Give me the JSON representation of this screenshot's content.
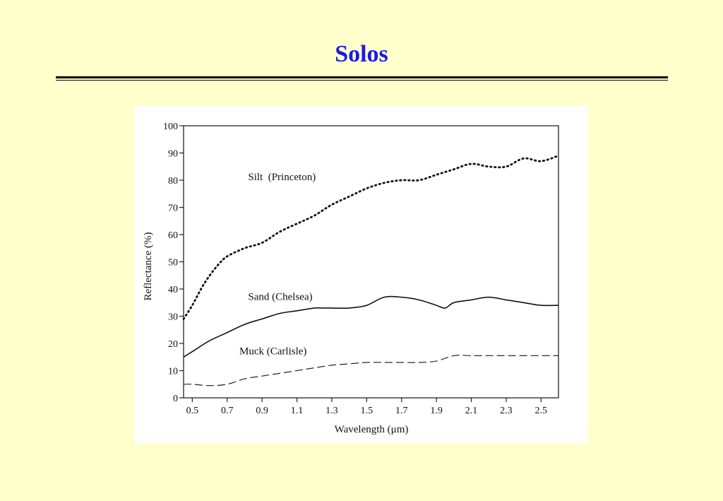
{
  "slide": {
    "title": "Solos",
    "title_color": "#1a1ae6",
    "background": "#ffffcc"
  },
  "chart_data": {
    "type": "line",
    "title": "",
    "xlabel": "Wavelength (μm)",
    "ylabel": "Reflectance (%)",
    "xlim": [
      0.45,
      2.6
    ],
    "ylim": [
      0,
      100
    ],
    "x_ticks": [
      0.5,
      0.7,
      0.9,
      1.1,
      1.3,
      1.5,
      1.7,
      1.9,
      2.1,
      2.3,
      2.5
    ],
    "x_tick_labels": [
      "0.5",
      "0.7",
      "0.9",
      "1.1",
      "1.3",
      "1.5",
      "1.7",
      "1.9",
      "2.1",
      "2.3",
      "2.5"
    ],
    "y_ticks": [
      0,
      10,
      20,
      30,
      40,
      50,
      60,
      70,
      80,
      90,
      100
    ],
    "y_tick_labels": [
      "0",
      "10",
      "20",
      "30",
      "40",
      "50",
      "60",
      "70",
      "80",
      "90",
      "100"
    ],
    "grid": false,
    "legend": "none",
    "series": [
      {
        "name": "Silt (Princeton)",
        "style": "dotted",
        "points": [
          [
            0.45,
            29
          ],
          [
            0.5,
            34
          ],
          [
            0.55,
            40
          ],
          [
            0.6,
            45
          ],
          [
            0.65,
            49
          ],
          [
            0.7,
            52
          ],
          [
            0.8,
            55
          ],
          [
            0.9,
            57
          ],
          [
            1.0,
            61
          ],
          [
            1.1,
            64
          ],
          [
            1.2,
            67
          ],
          [
            1.3,
            71
          ],
          [
            1.4,
            74
          ],
          [
            1.5,
            77
          ],
          [
            1.6,
            79
          ],
          [
            1.7,
            80
          ],
          [
            1.8,
            80
          ],
          [
            1.9,
            82
          ],
          [
            2.0,
            84
          ],
          [
            2.1,
            86
          ],
          [
            2.2,
            85
          ],
          [
            2.3,
            85
          ],
          [
            2.4,
            88
          ],
          [
            2.5,
            87
          ],
          [
            2.6,
            89
          ]
        ]
      },
      {
        "name": "Sand (Chelsea)",
        "style": "solid",
        "points": [
          [
            0.45,
            15
          ],
          [
            0.5,
            17
          ],
          [
            0.6,
            21
          ],
          [
            0.7,
            24
          ],
          [
            0.8,
            27
          ],
          [
            0.9,
            29
          ],
          [
            1.0,
            31
          ],
          [
            1.1,
            32
          ],
          [
            1.2,
            33
          ],
          [
            1.25,
            33
          ],
          [
            1.3,
            33
          ],
          [
            1.4,
            33
          ],
          [
            1.5,
            34
          ],
          [
            1.6,
            37
          ],
          [
            1.7,
            37
          ],
          [
            1.8,
            36
          ],
          [
            1.9,
            34
          ],
          [
            1.95,
            33
          ],
          [
            2.0,
            35
          ],
          [
            2.1,
            36
          ],
          [
            2.2,
            37
          ],
          [
            2.3,
            36
          ],
          [
            2.4,
            35
          ],
          [
            2.5,
            34
          ],
          [
            2.6,
            34
          ]
        ]
      },
      {
        "name": "Muck (Carlisle)",
        "style": "dashed",
        "points": [
          [
            0.45,
            5
          ],
          [
            0.5,
            5
          ],
          [
            0.6,
            4.5
          ],
          [
            0.7,
            5
          ],
          [
            0.8,
            7
          ],
          [
            0.9,
            8
          ],
          [
            1.0,
            9
          ],
          [
            1.1,
            10
          ],
          [
            1.2,
            11
          ],
          [
            1.3,
            12
          ],
          [
            1.4,
            12.5
          ],
          [
            1.5,
            13
          ],
          [
            1.6,
            13
          ],
          [
            1.7,
            13
          ],
          [
            1.8,
            13
          ],
          [
            1.9,
            13.5
          ],
          [
            2.0,
            15.5
          ],
          [
            2.1,
            15.5
          ],
          [
            2.2,
            15.5
          ],
          [
            2.3,
            15.5
          ],
          [
            2.4,
            15.5
          ],
          [
            2.5,
            15.5
          ],
          [
            2.6,
            15.5
          ]
        ]
      }
    ],
    "annotations": [
      {
        "text": "Silt  (Princeton)",
        "x": 0.82,
        "y": 80
      },
      {
        "text": "Sand (Chelsea)",
        "x": 0.82,
        "y": 36
      },
      {
        "text": "Muck (Carlisle)",
        "x": 0.77,
        "y": 16
      }
    ]
  }
}
